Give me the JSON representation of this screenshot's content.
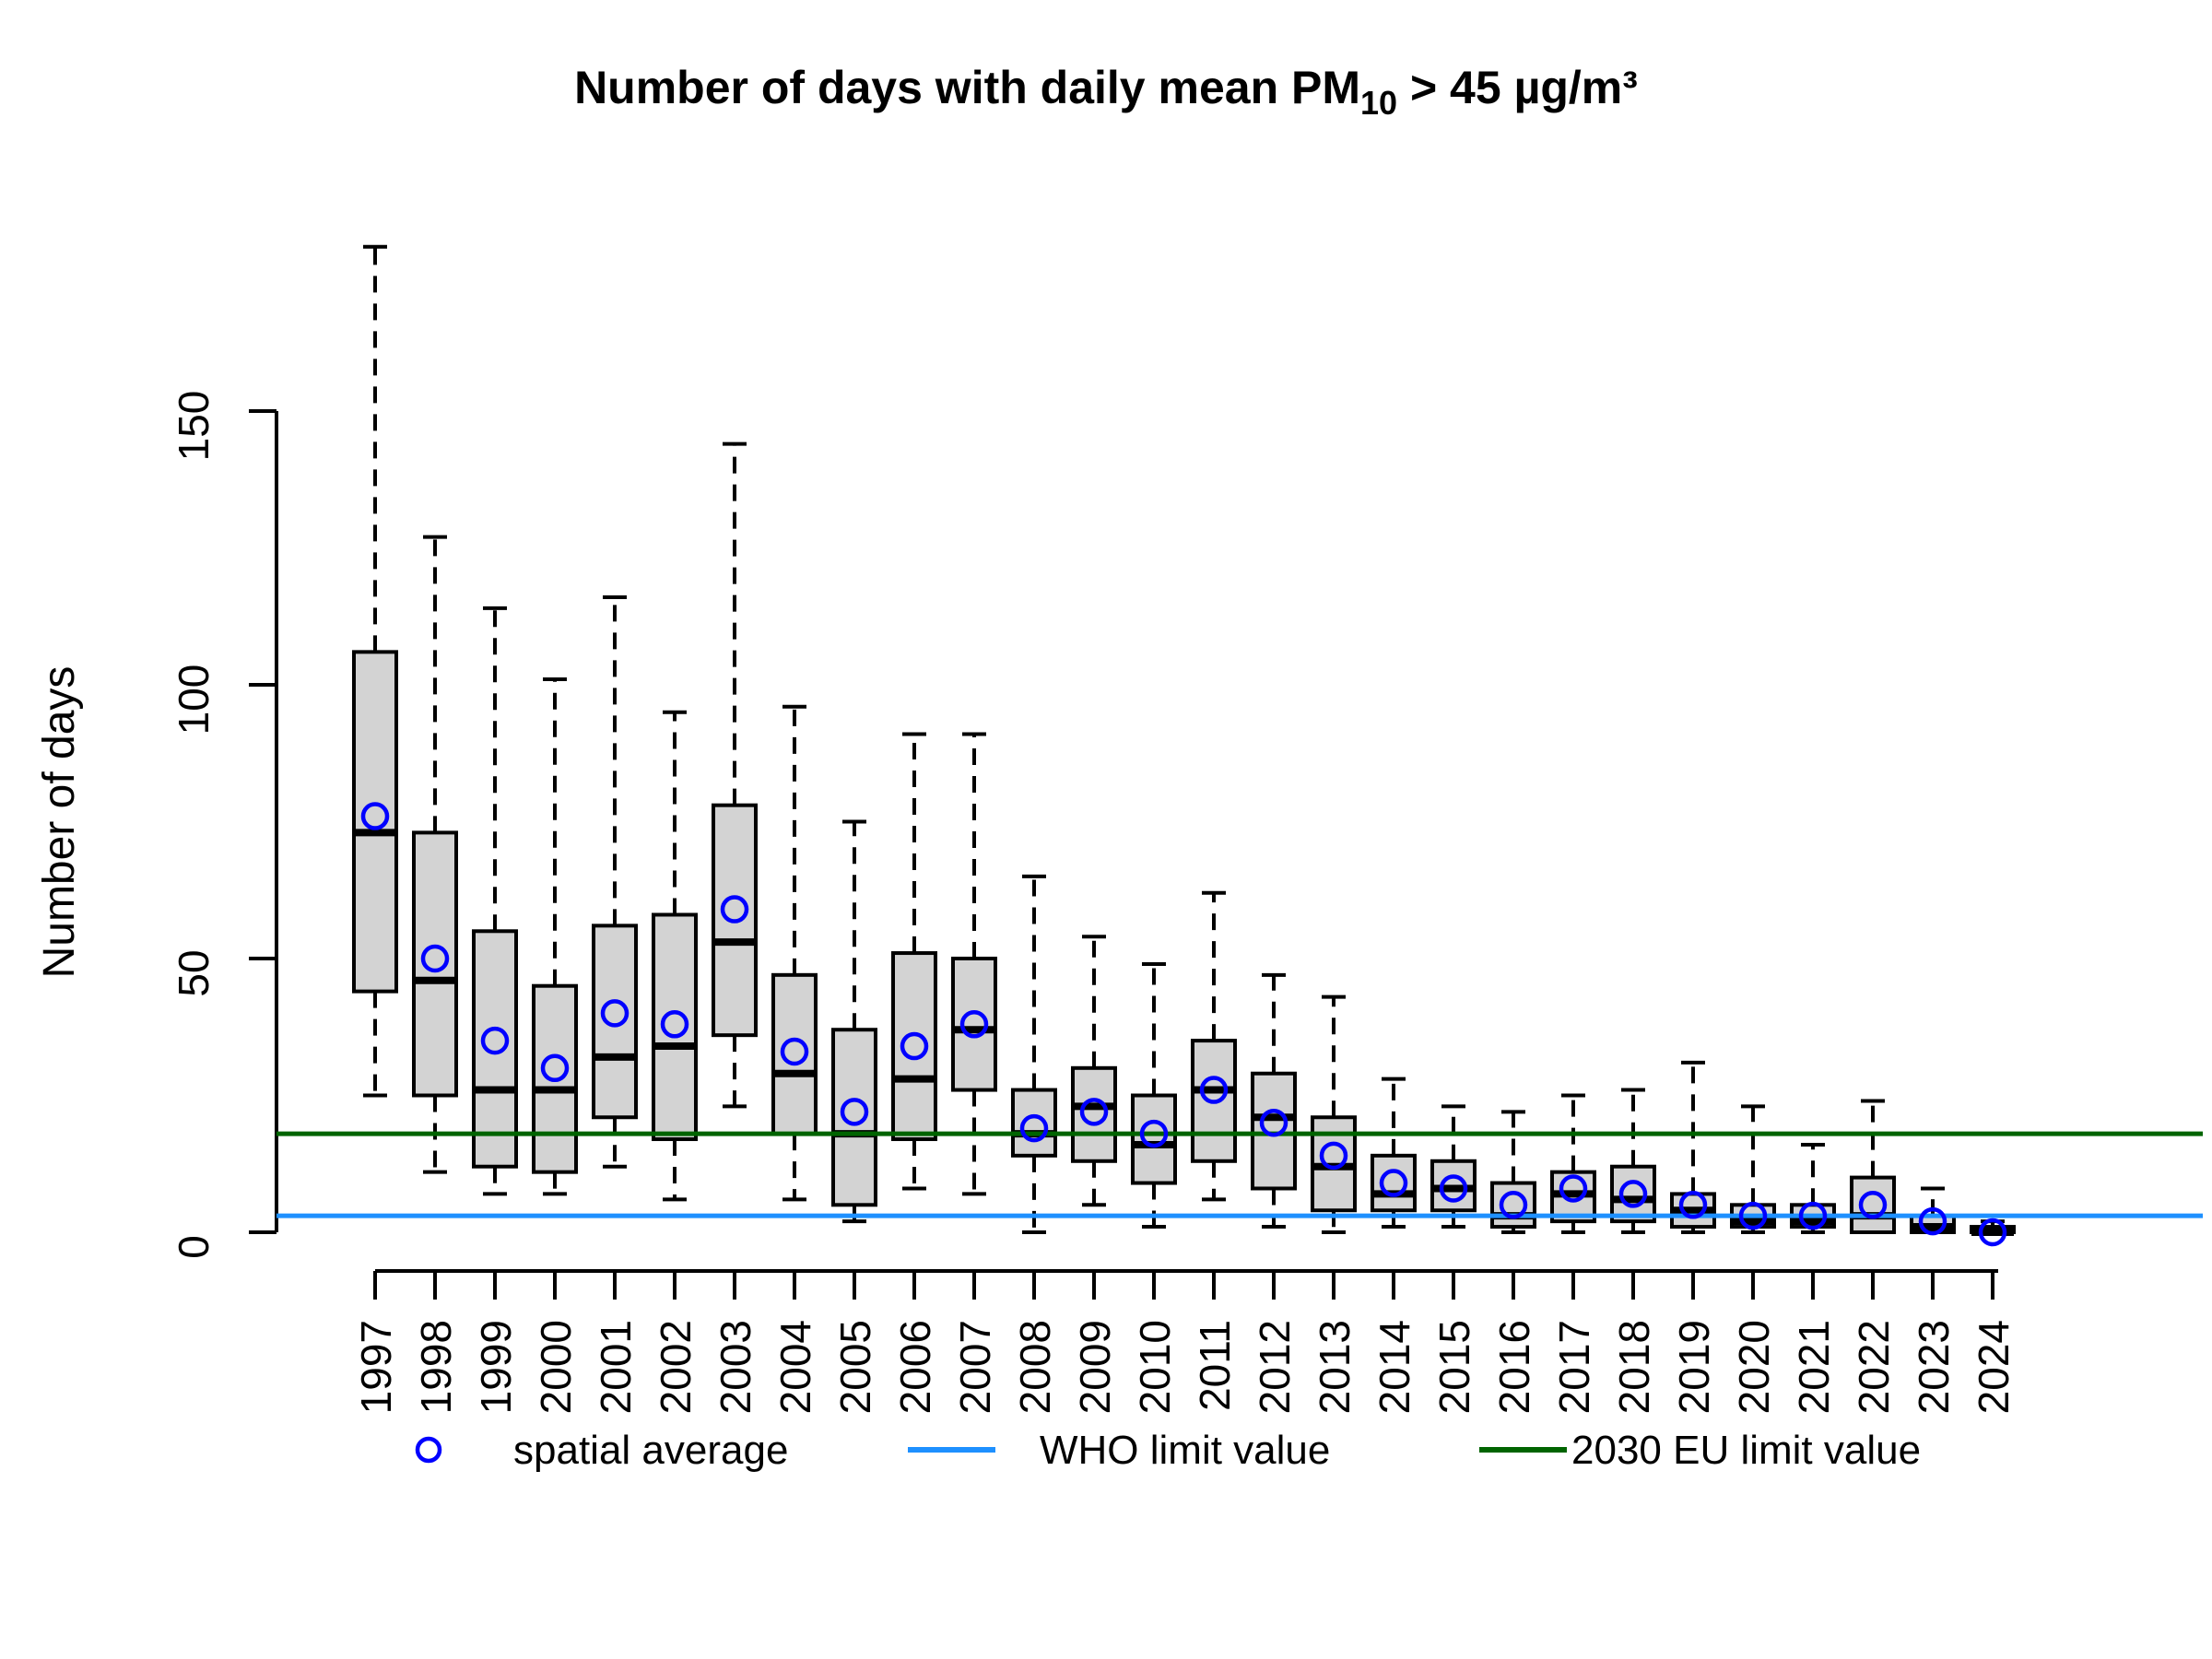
{
  "chart_data": {
    "type": "boxplot",
    "title": {
      "prefix": "Number of days with daily mean PM",
      "subscript": "10",
      "suffix": " > 45 µg/m³"
    },
    "xlabel": "",
    "ylabel": "Number of days",
    "y_ticks": [
      0,
      50,
      100,
      150
    ],
    "ylim": [
      0,
      190
    ],
    "grid": false,
    "legend_position": "bottom",
    "colors": {
      "box_fill": "#d3d3d3",
      "box_border": "#000000",
      "median": "#000000",
      "whisker": "#000000",
      "mean_marker": "#0000ff",
      "who_line": "#1e90ff",
      "eu_line": "#006400"
    },
    "reference_lines": [
      {
        "name": "WHO limit value",
        "value": 3,
        "color": "#1e90ff"
      },
      {
        "name": "2030 EU limit value",
        "value": 18,
        "color": "#006400"
      }
    ],
    "legend": {
      "items": [
        {
          "label": "spatial average",
          "marker": "circle",
          "color": "#0000ff"
        },
        {
          "label": "WHO limit value",
          "marker": "line",
          "color": "#1e90ff"
        },
        {
          "label": "2030 EU limit value",
          "marker": "line",
          "color": "#006400"
        }
      ]
    },
    "categories": [
      "1997",
      "1998",
      "1999",
      "2000",
      "2001",
      "2002",
      "2003",
      "2004",
      "2005",
      "2006",
      "2007",
      "2008",
      "2009",
      "2010",
      "2011",
      "2012",
      "2013",
      "2014",
      "2015",
      "2016",
      "2017",
      "2018",
      "2019",
      "2020",
      "2021",
      "2022",
      "2023",
      "2024"
    ],
    "boxes": [
      {
        "year": "1997",
        "min": 25,
        "q1": 44,
        "median": 73,
        "q3": 106,
        "max": 180,
        "mean": 76
      },
      {
        "year": "1998",
        "min": 11,
        "q1": 25,
        "median": 46,
        "q3": 73,
        "max": 127,
        "mean": 50
      },
      {
        "year": "1999",
        "min": 7,
        "q1": 12,
        "median": 26,
        "q3": 55,
        "max": 114,
        "mean": 35
      },
      {
        "year": "2000",
        "min": 7,
        "q1": 11,
        "median": 26,
        "q3": 45,
        "max": 101,
        "mean": 30
      },
      {
        "year": "2001",
        "min": 12,
        "q1": 21,
        "median": 32,
        "q3": 56,
        "max": 116,
        "mean": 40
      },
      {
        "year": "2002",
        "min": 6,
        "q1": 17,
        "median": 34,
        "q3": 58,
        "max": 95,
        "mean": 38
      },
      {
        "year": "2003",
        "min": 23,
        "q1": 36,
        "median": 53,
        "q3": 78,
        "max": 144,
        "mean": 59
      },
      {
        "year": "2004",
        "min": 6,
        "q1": 18,
        "median": 29,
        "q3": 47,
        "max": 96,
        "mean": 33
      },
      {
        "year": "2005",
        "min": 2,
        "q1": 5,
        "median": 18,
        "q3": 37,
        "max": 75,
        "mean": 22
      },
      {
        "year": "2006",
        "min": 8,
        "q1": 17,
        "median": 28,
        "q3": 51,
        "max": 91,
        "mean": 34
      },
      {
        "year": "2007",
        "min": 7,
        "q1": 26,
        "median": 37,
        "q3": 50,
        "max": 91,
        "mean": 38
      },
      {
        "year": "2008",
        "min": 0,
        "q1": 14,
        "median": 18,
        "q3": 26,
        "max": 65,
        "mean": 19
      },
      {
        "year": "2009",
        "min": 5,
        "q1": 13,
        "median": 23,
        "q3": 30,
        "max": 54,
        "mean": 22
      },
      {
        "year": "2010",
        "min": 1,
        "q1": 9,
        "median": 16,
        "q3": 25,
        "max": 49,
        "mean": 18
      },
      {
        "year": "2011",
        "min": 6,
        "q1": 13,
        "median": 26,
        "q3": 35,
        "max": 62,
        "mean": 26
      },
      {
        "year": "2012",
        "min": 1,
        "q1": 8,
        "median": 21,
        "q3": 29,
        "max": 47,
        "mean": 20
      },
      {
        "year": "2013",
        "min": 0,
        "q1": 4,
        "median": 12,
        "q3": 21,
        "max": 43,
        "mean": 14
      },
      {
        "year": "2014",
        "min": 1,
        "q1": 4,
        "median": 7,
        "q3": 14,
        "max": 28,
        "mean": 9
      },
      {
        "year": "2015",
        "min": 1,
        "q1": 4,
        "median": 8,
        "q3": 13,
        "max": 23,
        "mean": 8
      },
      {
        "year": "2016",
        "min": 0,
        "q1": 1,
        "median": 3,
        "q3": 9,
        "max": 22,
        "mean": 5
      },
      {
        "year": "2017",
        "min": 0,
        "q1": 2,
        "median": 7,
        "q3": 11,
        "max": 25,
        "mean": 8
      },
      {
        "year": "2018",
        "min": 0,
        "q1": 2,
        "median": 6,
        "q3": 12,
        "max": 26,
        "mean": 7
      },
      {
        "year": "2019",
        "min": 0,
        "q1": 1,
        "median": 4,
        "q3": 7,
        "max": 31,
        "mean": 5
      },
      {
        "year": "2020",
        "min": 0,
        "q1": 1,
        "median": 2,
        "q3": 5,
        "max": 23,
        "mean": 3
      },
      {
        "year": "2021",
        "min": 0,
        "q1": 1,
        "median": 2,
        "q3": 5,
        "max": 16,
        "mean": 3
      },
      {
        "year": "2022",
        "min": 0,
        "q1": 0,
        "median": 3,
        "q3": 10,
        "max": 24,
        "mean": 5
      },
      {
        "year": "2023",
        "min": 0,
        "q1": 0,
        "median": 1,
        "q3": 3,
        "max": 8,
        "mean": 2
      },
      {
        "year": "2024",
        "min": 0,
        "q1": 0,
        "median": 0,
        "q3": 1,
        "max": 2,
        "mean": 0
      }
    ]
  }
}
